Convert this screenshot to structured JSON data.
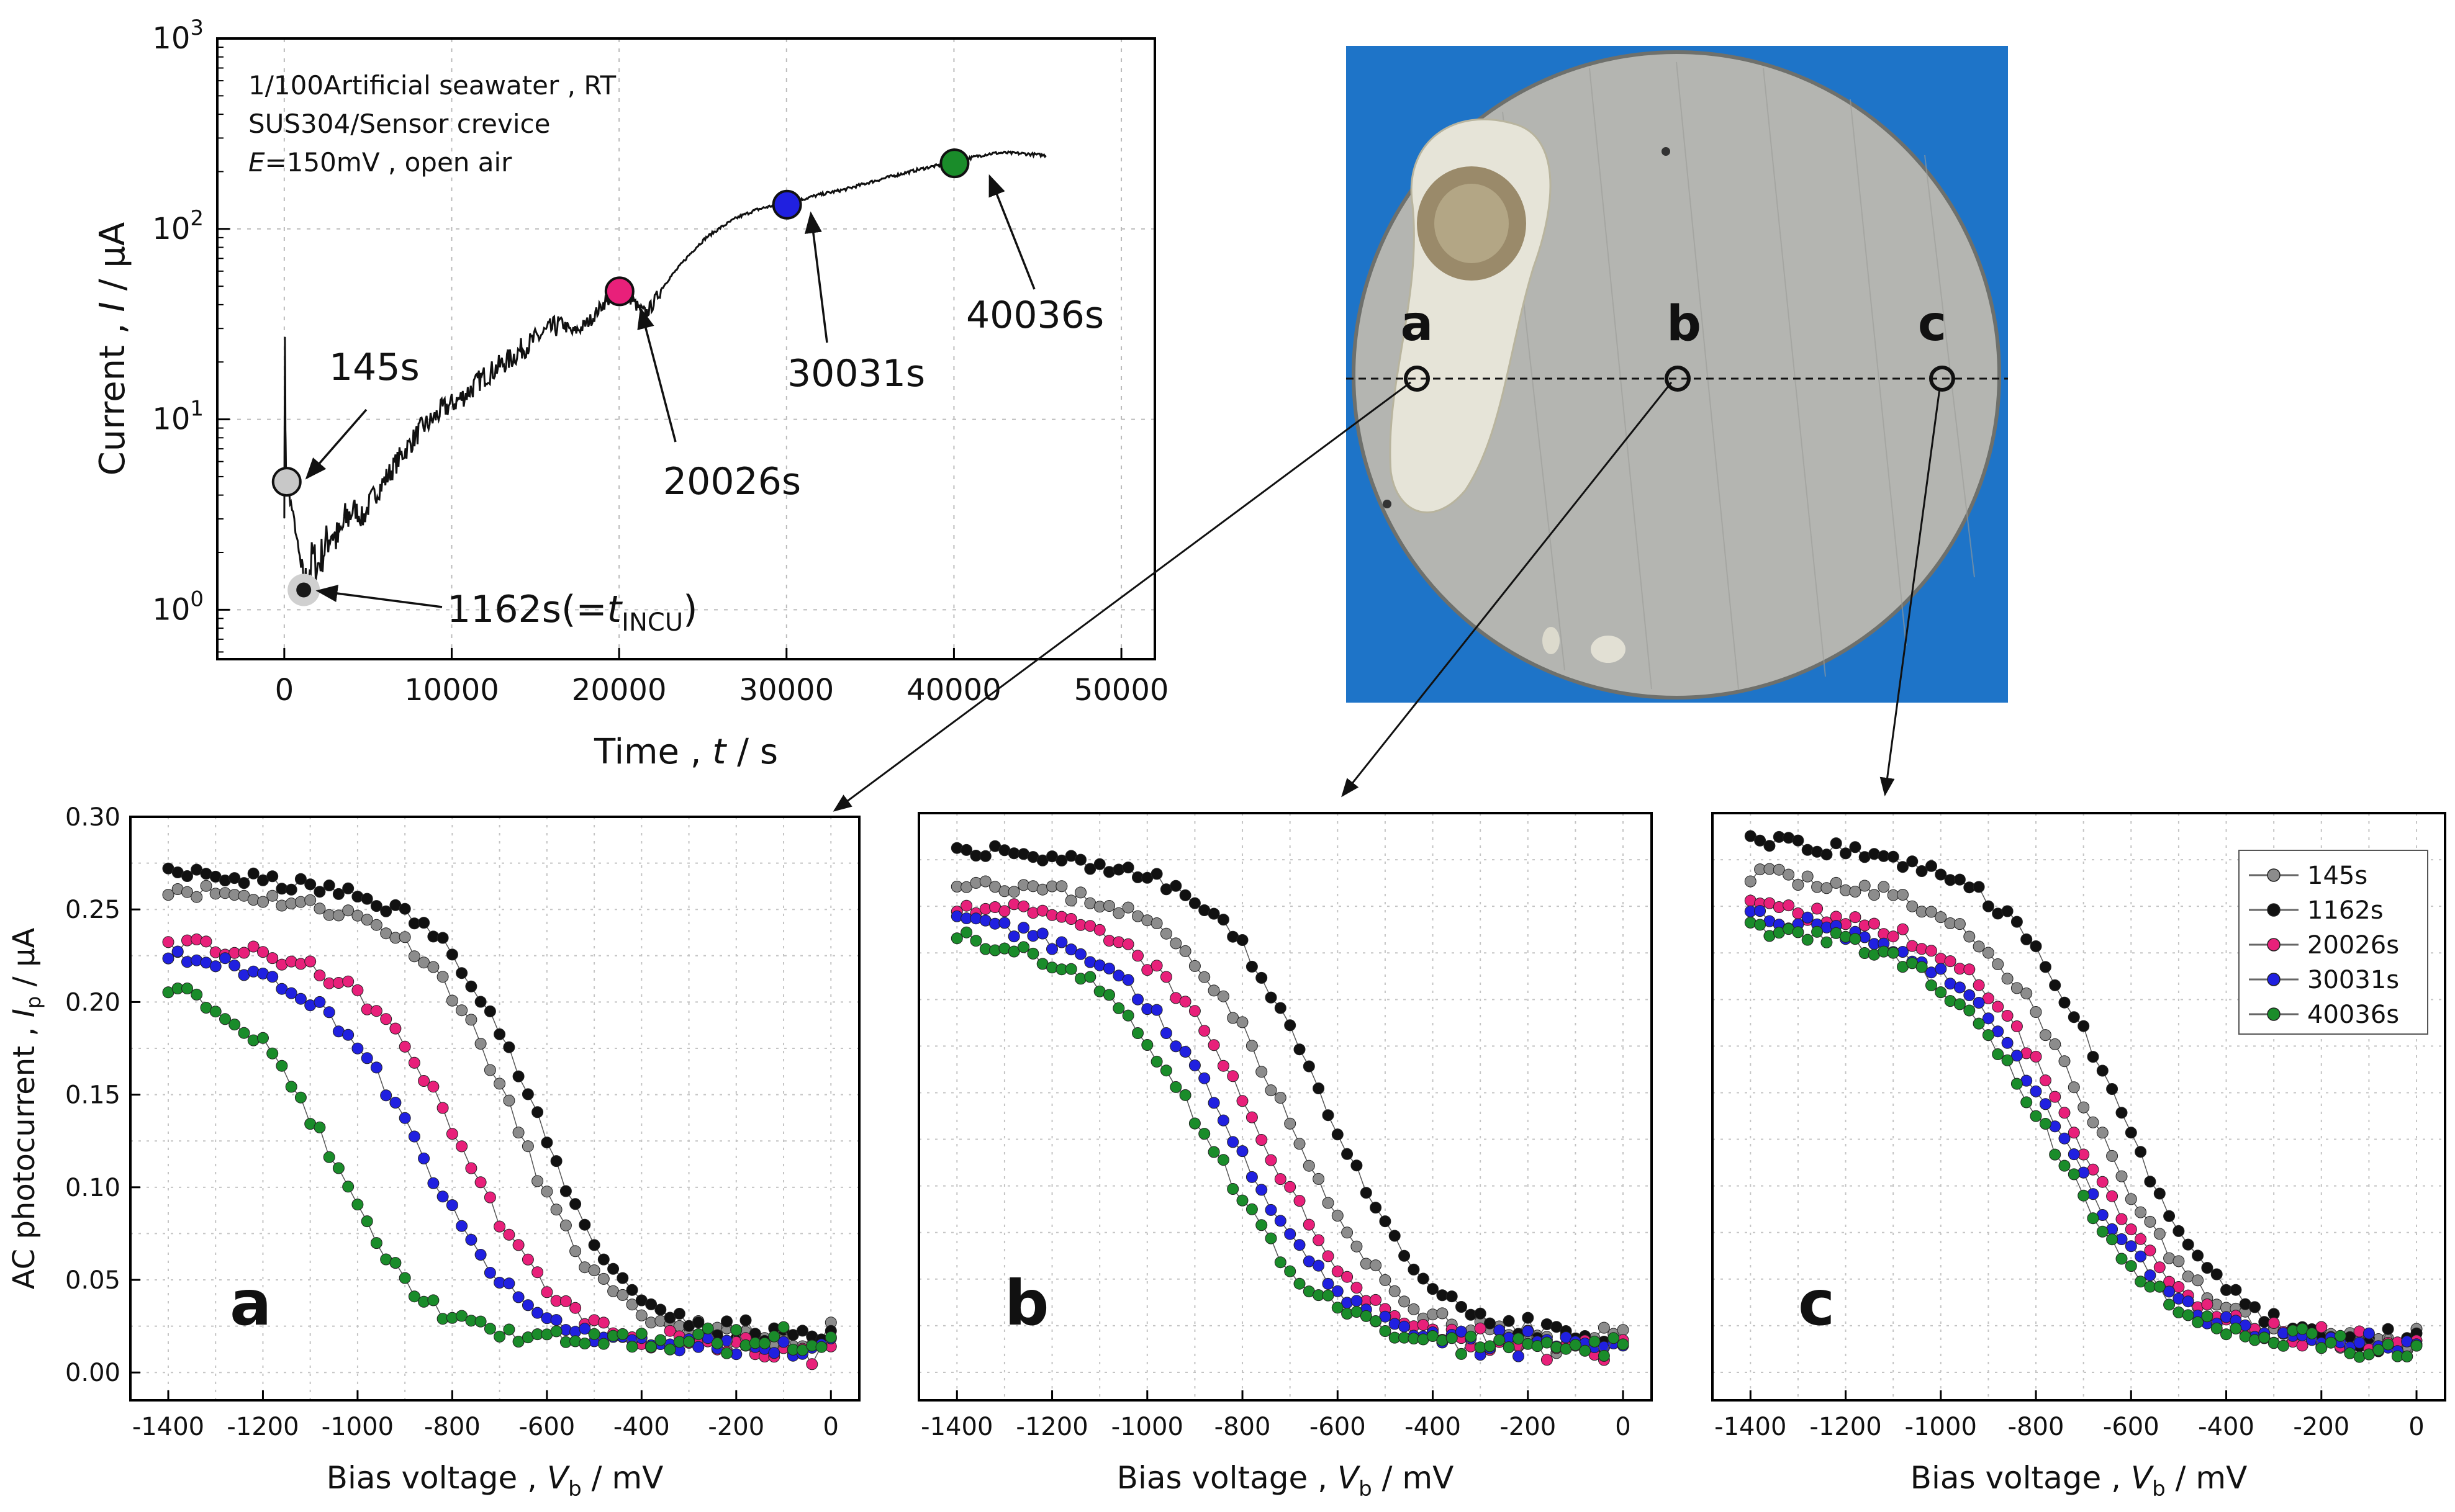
{
  "figure": {
    "photo": {
      "points": [
        "a",
        "b",
        "c"
      ],
      "colors": {
        "background": "#1e74c8",
        "disk": "#b4b5b1",
        "edge": "#6e706c",
        "stain": "#e6e4d8",
        "pit": "#9a8a6a"
      }
    }
  },
  "chart_data": [
    {
      "type": "line",
      "id": "current-time",
      "title": "",
      "xlabel": "Time , t / s",
      "xlabel_parts": {
        "pre": "Time , ",
        "italic": "t",
        "post": " / s"
      },
      "ylabel": "Current , I / μA",
      "ylabel_parts": {
        "pre": "Current , ",
        "italic": "I",
        "post": " / μA"
      },
      "yscale": "log",
      "xlim": [
        -4000,
        52000
      ],
      "ylim": [
        0.55,
        1000
      ],
      "xticks": [
        0,
        10000,
        20000,
        30000,
        40000,
        50000
      ],
      "yticks": [
        {
          "value": 1,
          "base": "10",
          "exp": "0"
        },
        {
          "value": 10,
          "base": "10",
          "exp": "1"
        },
        {
          "value": 100,
          "base": "10",
          "exp": "2"
        },
        {
          "value": 1000,
          "base": "10",
          "exp": "3"
        }
      ],
      "annotation_lines": [
        "1/100Artificial seawater , RT",
        "SUS304/Sensor crevice"
      ],
      "annotation_e": {
        "italic": "E",
        "rest": "=150mV , open air"
      },
      "series": [
        {
          "name": "current",
          "x": [
            0,
            40,
            70,
            100,
            145,
            250,
            400,
            600,
            800,
            1000,
            1162,
            1400,
            1700,
            2000,
            2400,
            2800,
            3200,
            3700,
            4200,
            4700,
            5200,
            5800,
            6400,
            7000,
            7600,
            8200,
            8800,
            9400,
            10000,
            10600,
            11200,
            11800,
            12400,
            13000,
            13600,
            14200,
            14800,
            15400,
            16000,
            16600,
            17200,
            17800,
            18400,
            19000,
            19600,
            20026,
            20400,
            20800,
            21200,
            21600,
            22000,
            22500,
            23000,
            23500,
            24000,
            24600,
            25200,
            25800,
            26400,
            27000,
            27600,
            28200,
            28800,
            29400,
            30031,
            30600,
            31200,
            31800,
            32400,
            33000,
            33600,
            34200,
            34800,
            35400,
            36000,
            36600,
            37200,
            37800,
            38400,
            39000,
            39600,
            40036,
            40500,
            41000,
            41500,
            42000,
            42500,
            43000,
            43500,
            44000,
            44500,
            45000,
            45500
          ],
          "y": [
            3.2,
            28,
            9,
            5.5,
            4.8,
            4.2,
            3.6,
            2.9,
            2.2,
            1.6,
            1.3,
            1.5,
            1.9,
            1.7,
            2.1,
            2.6,
            2.3,
            3.0,
            3.4,
            3.0,
            3.8,
            4.5,
            5.4,
            6.5,
            7.6,
            9.0,
            9.8,
            11.2,
            12.0,
            13.0,
            14.5,
            16.5,
            17.8,
            19.5,
            21.0,
            23.5,
            25.5,
            28.0,
            30.0,
            32.0,
            28.5,
            30.5,
            34.0,
            40.0,
            44.0,
            47.0,
            46.0,
            42.0,
            38.0,
            36.0,
            40.0,
            48.0,
            55.0,
            62.0,
            70.0,
            80.0,
            90.0,
            98.0,
            106.0,
            114.0,
            120.0,
            126.0,
            130.0,
            134.0,
            137.0,
            140.0,
            145.0,
            150.0,
            154.0,
            158.0,
            162.0,
            168.0,
            174.0,
            180.0,
            186.0,
            192.0,
            198.0,
            204.0,
            210.0,
            215.0,
            218.0,
            221.0,
            228.0,
            236.0,
            242.0,
            247.0,
            250.0,
            251.0,
            250.0,
            249.0,
            247.0,
            245.0,
            243.0
          ]
        }
      ],
      "markers": [
        {
          "label": "145s",
          "x": 145,
          "y": 4.7,
          "color": "#c8c8c8"
        },
        {
          "label": "1162s",
          "x": 1162,
          "y": 1.27,
          "color": "#1a1a1a"
        },
        {
          "label": "20026s",
          "x": 20026,
          "y": 47,
          "color": "#e8207a"
        },
        {
          "label": "30031s",
          "x": 30031,
          "y": 134,
          "color": "#2020e0"
        },
        {
          "label": "40036s",
          "x": 40036,
          "y": 221,
          "color": "#1a8c2a"
        }
      ],
      "marker_labels": [
        {
          "text": "145s"
        },
        {
          "text": "20026s"
        },
        {
          "text": "30031s"
        },
        {
          "text": "40036s"
        },
        {
          "pre": "1162s(=",
          "italic": "t",
          "sub": "INCU",
          "post": ")"
        }
      ]
    },
    {
      "type": "scatter",
      "id": "panel-a",
      "panel_label": "a",
      "xlabel": "Bias voltage , Vb / mV",
      "xlabel_parts": {
        "pre": "Bias voltage , ",
        "italic": "V",
        "sub": "b",
        "post": " / mV"
      },
      "ylabel": "AC photocurrent , Ip / μA",
      "ylabel_parts": {
        "pre": "AC photocurrent , ",
        "italic": "I",
        "sub": "p",
        "post": " / μA"
      },
      "xlim": [
        -1480,
        60
      ],
      "ylim": [
        -0.015,
        0.3
      ],
      "xticks": [
        -1400,
        -1200,
        -1000,
        -800,
        -600,
        -400,
        -200,
        0
      ],
      "yticks": [
        "0.00",
        "0.05",
        "0.10",
        "0.15",
        "0.20",
        "0.25",
        "0.30"
      ],
      "series": [
        {
          "name": "145s",
          "color": "#8c8c8c",
          "mid": -660,
          "width": 95,
          "top": 0.262,
          "bottom": 0.018,
          "drop": 0.034
        },
        {
          "name": "1162s",
          "color": "#111111",
          "mid": -620,
          "width": 95,
          "top": 0.27,
          "bottom": 0.02,
          "drop": 0.03
        },
        {
          "name": "20026s",
          "color": "#e8207a",
          "mid": -770,
          "width": 105,
          "top": 0.232,
          "bottom": 0.012,
          "drop": 0.024
        },
        {
          "name": "30031s",
          "color": "#2020e0",
          "mid": -860,
          "width": 105,
          "top": 0.226,
          "bottom": 0.014,
          "drop": 0.026
        },
        {
          "name": "40036s",
          "color": "#1a8c2a",
          "mid": -1050,
          "width": 95,
          "top": 0.211,
          "bottom": 0.017,
          "drop": 0.006
        }
      ]
    },
    {
      "type": "scatter",
      "id": "panel-b",
      "panel_label": "b",
      "xlabel": "Bias voltage , Vb / mV",
      "xlabel_parts": {
        "pre": "Bias voltage , ",
        "italic": "V",
        "sub": "b",
        "post": " / mV"
      },
      "ylabel": "",
      "xlim": [
        -1480,
        60
      ],
      "ylim": [
        -0.015,
        0.3
      ],
      "xticks": [
        -1400,
        -1200,
        -1000,
        -800,
        -600,
        -400,
        -200,
        0
      ],
      "yticks": [],
      "series": [
        {
          "name": "145s",
          "color": "#8c8c8c",
          "mid": -700,
          "width": 110,
          "top": 0.265,
          "bottom": 0.016,
          "drop": 0.03
        },
        {
          "name": "1162s",
          "color": "#111111",
          "mid": -620,
          "width": 110,
          "top": 0.282,
          "bottom": 0.016,
          "drop": 0.03
        },
        {
          "name": "20026s",
          "color": "#e8207a",
          "mid": -760,
          "width": 115,
          "top": 0.252,
          "bottom": 0.013,
          "drop": 0.026
        },
        {
          "name": "30031s",
          "color": "#2020e0",
          "mid": -810,
          "width": 120,
          "top": 0.243,
          "bottom": 0.013,
          "drop": 0.026
        },
        {
          "name": "40036s",
          "color": "#1a8c2a",
          "mid": -860,
          "width": 120,
          "top": 0.236,
          "bottom": 0.013,
          "drop": 0.026
        }
      ]
    },
    {
      "type": "scatter",
      "id": "panel-c",
      "panel_label": "c",
      "xlabel": "Bias voltage , Vb / mV",
      "xlabel_parts": {
        "pre": "Bias voltage , ",
        "italic": "V",
        "sub": "b",
        "post": " / mV"
      },
      "ylabel": "",
      "xlim": [
        -1480,
        60
      ],
      "ylim": [
        -0.015,
        0.3
      ],
      "xticks": [
        -1400,
        -1200,
        -1000,
        -800,
        -600,
        -400,
        -200,
        0
      ],
      "yticks": [],
      "legend": {
        "placement": "top-right",
        "entries": [
          "145s",
          "1162s",
          "20026s",
          "30031s",
          "40036s"
        ]
      },
      "series": [
        {
          "name": "145s",
          "color": "#8c8c8c",
          "mid": -680,
          "width": 120,
          "top": 0.268,
          "bottom": 0.015,
          "drop": 0.026
        },
        {
          "name": "1162s",
          "color": "#111111",
          "mid": -630,
          "width": 115,
          "top": 0.285,
          "bottom": 0.016,
          "drop": 0.026
        },
        {
          "name": "20026s",
          "color": "#e8207a",
          "mid": -710,
          "width": 120,
          "top": 0.25,
          "bottom": 0.014,
          "drop": 0.026
        },
        {
          "name": "30031s",
          "color": "#2020e0",
          "mid": -740,
          "width": 120,
          "top": 0.245,
          "bottom": 0.014,
          "drop": 0.026
        },
        {
          "name": "40036s",
          "color": "#1a8c2a",
          "mid": -760,
          "width": 120,
          "top": 0.24,
          "bottom": 0.013,
          "drop": 0.026
        }
      ]
    }
  ]
}
